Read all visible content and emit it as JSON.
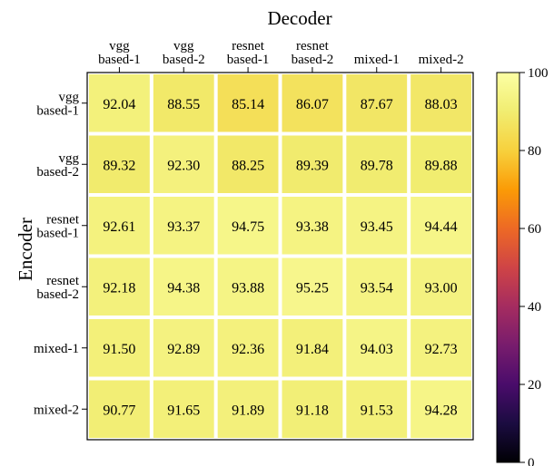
{
  "chart_data": {
    "type": "heatmap",
    "title": "Decoder",
    "xlabel": "Decoder",
    "ylabel": "Encoder",
    "x_categories": [
      [
        "vgg",
        "based-1"
      ],
      [
        "vgg",
        "based-2"
      ],
      [
        "resnet",
        "based-1"
      ],
      [
        "resnet",
        "based-2"
      ],
      [
        "mixed-1"
      ],
      [
        "mixed-2"
      ]
    ],
    "y_categories": [
      [
        "vgg",
        "based-1"
      ],
      [
        "vgg",
        "based-2"
      ],
      [
        "resnet",
        "based-1"
      ],
      [
        "resnet",
        "based-2"
      ],
      [
        "mixed-1"
      ],
      [
        "mixed-2"
      ]
    ],
    "values": [
      [
        92.04,
        88.55,
        85.14,
        86.07,
        87.67,
        88.03
      ],
      [
        89.32,
        92.3,
        88.25,
        89.39,
        89.78,
        89.88
      ],
      [
        92.61,
        93.37,
        94.75,
        93.38,
        93.45,
        94.44
      ],
      [
        92.18,
        94.38,
        93.88,
        95.25,
        93.54,
        93.0
      ],
      [
        91.5,
        92.89,
        92.36,
        91.84,
        94.03,
        92.73
      ],
      [
        90.77,
        91.65,
        91.89,
        91.18,
        91.53,
        94.28
      ]
    ],
    "value_labels": [
      [
        "92.04",
        "88.55",
        "85.14",
        "86.07",
        "87.67",
        "88.03"
      ],
      [
        "89.32",
        "92.30",
        "88.25",
        "89.39",
        "89.78",
        "89.88"
      ],
      [
        "92.61",
        "93.37",
        "94.75",
        "93.38",
        "93.45",
        "94.44"
      ],
      [
        "92.18",
        "94.38",
        "93.88",
        "95.25",
        "93.54",
        "93.00"
      ],
      [
        "91.50",
        "92.89",
        "92.36",
        "91.84",
        "94.03",
        "92.73"
      ],
      [
        "90.77",
        "91.65",
        "91.89",
        "91.18",
        "91.53",
        "94.28"
      ]
    ],
    "colormap": "inferno",
    "colorbar": {
      "range": [
        0,
        100
      ],
      "ticks": [
        0,
        20,
        40,
        60,
        80,
        100
      ],
      "tick_labels": [
        "0",
        "20",
        "40",
        "60",
        "80",
        "100"
      ]
    },
    "x_axis_position": "top",
    "grid": false,
    "cell_separator_color": "#ffffff"
  }
}
